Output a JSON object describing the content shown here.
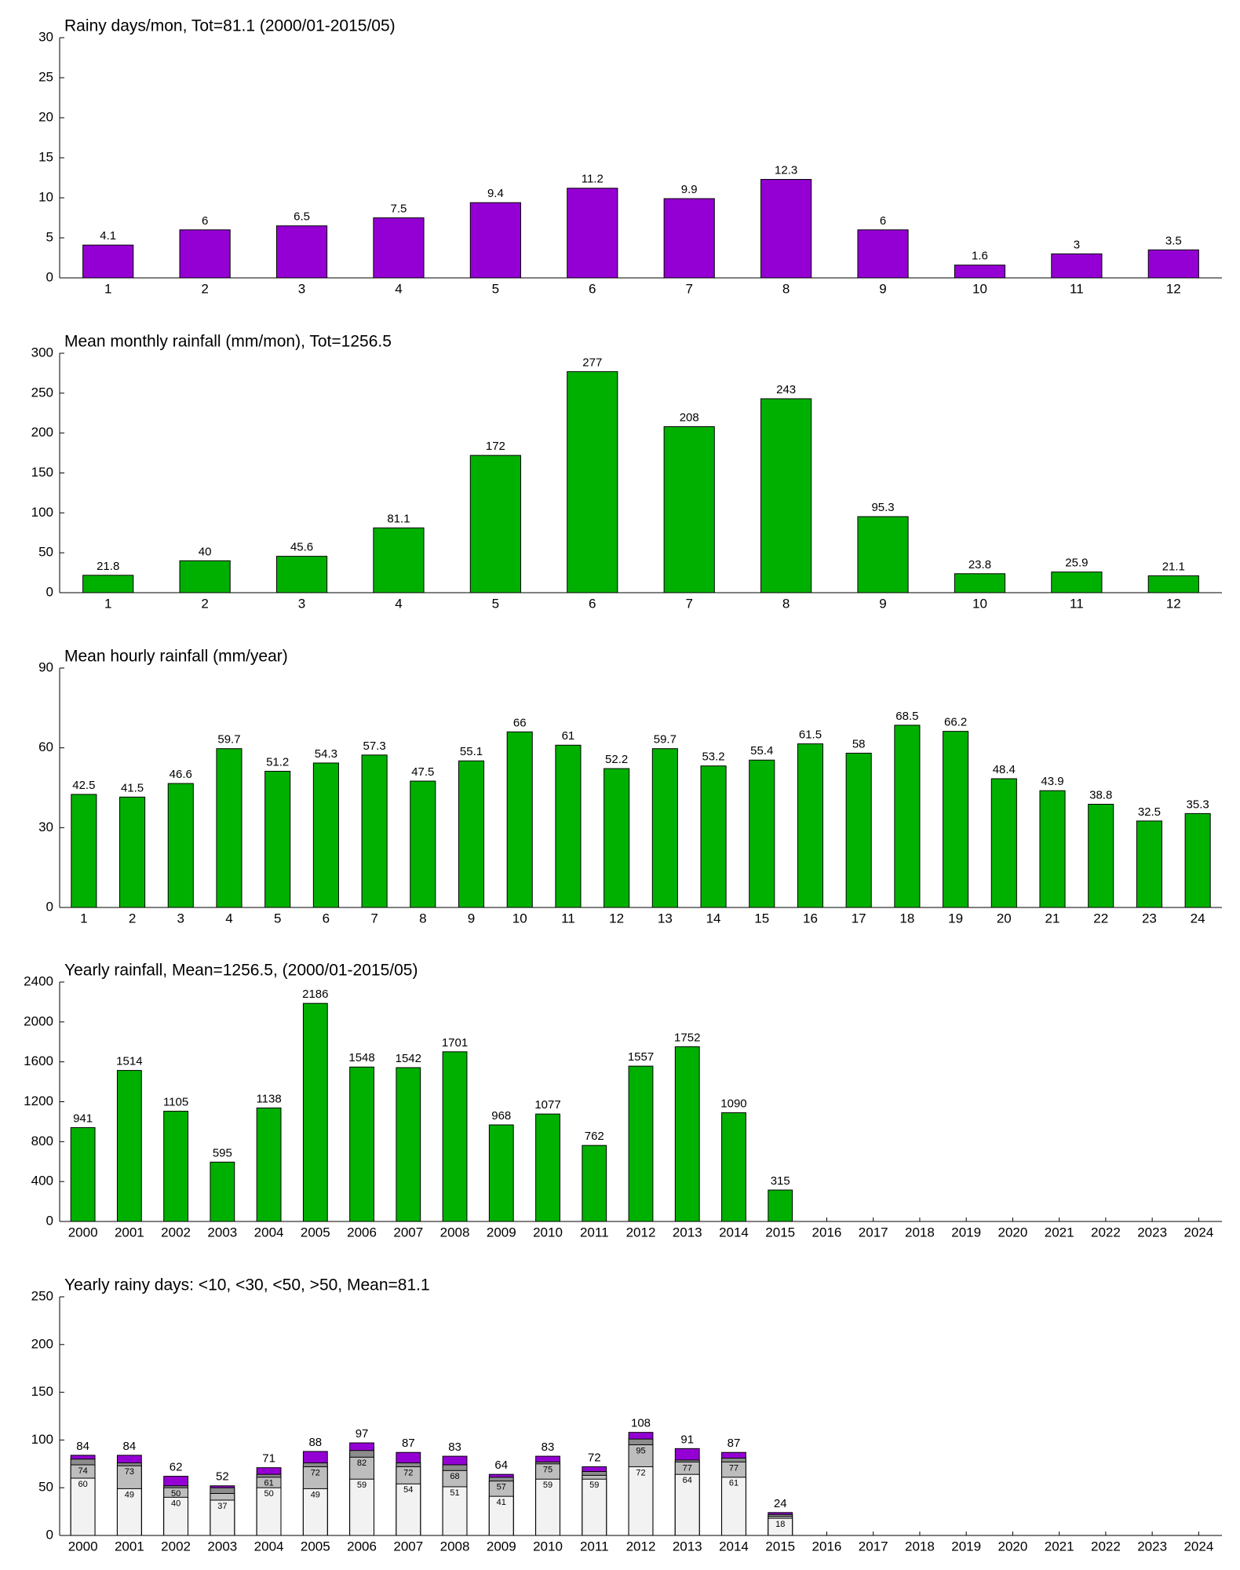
{
  "chart_data": [
    {
      "type": "bar",
      "title": "Rainy days/mon, Tot=81.1 (2000/01-2015/05)",
      "categories": [
        "1",
        "2",
        "3",
        "4",
        "5",
        "6",
        "7",
        "8",
        "9",
        "10",
        "11",
        "12"
      ],
      "values": [
        4.1,
        6,
        6.5,
        7.5,
        9.4,
        11.2,
        9.9,
        12.3,
        6,
        1.6,
        3,
        3.5
      ],
      "color": "#9400d3",
      "ylim": [
        0,
        30
      ],
      "yticks": [
        0,
        5,
        10,
        15,
        20,
        25,
        30
      ]
    },
    {
      "type": "bar",
      "title": "Mean monthly rainfall (mm/mon), Tot=1256.5",
      "categories": [
        "1",
        "2",
        "3",
        "4",
        "5",
        "6",
        "7",
        "8",
        "9",
        "10",
        "11",
        "12"
      ],
      "values": [
        21.8,
        40,
        45.6,
        81.1,
        172,
        277,
        208,
        243,
        95.3,
        23.8,
        25.9,
        21.1
      ],
      "color": "#00b000",
      "ylim": [
        0,
        300
      ],
      "yticks": [
        0,
        50,
        100,
        150,
        200,
        250,
        300
      ]
    },
    {
      "type": "bar",
      "title": "Mean hourly rainfall (mm/year)",
      "categories": [
        "1",
        "2",
        "3",
        "4",
        "5",
        "6",
        "7",
        "8",
        "9",
        "10",
        "11",
        "12",
        "13",
        "14",
        "15",
        "16",
        "17",
        "18",
        "19",
        "20",
        "21",
        "22",
        "23",
        "24"
      ],
      "values": [
        42.5,
        41.5,
        46.6,
        59.7,
        51.2,
        54.3,
        57.3,
        47.5,
        55.1,
        66,
        61,
        52.2,
        59.7,
        53.2,
        55.4,
        61.5,
        58,
        68.5,
        66.2,
        48.4,
        43.9,
        38.8,
        32.5,
        35.3
      ],
      "color": "#00b000",
      "ylim": [
        0,
        90
      ],
      "yticks": [
        0,
        30,
        60,
        90
      ]
    },
    {
      "type": "bar",
      "title": "Yearly rainfall, Mean=1256.5, (2000/01-2015/05)",
      "categories": [
        "2000",
        "2001",
        "2002",
        "2003",
        "2004",
        "2005",
        "2006",
        "2007",
        "2008",
        "2009",
        "2010",
        "2011",
        "2012",
        "2013",
        "2014",
        "2015",
        "2016",
        "2017",
        "2018",
        "2019",
        "2020",
        "2021",
        "2022",
        "2023",
        "2024"
      ],
      "values": [
        941,
        1514,
        1105,
        595,
        1138,
        2186,
        1548,
        1542,
        1701,
        968,
        1077,
        762,
        1557,
        1752,
        1090,
        315,
        null,
        null,
        null,
        null,
        null,
        null,
        null,
        null,
        null
      ],
      "color": "#00b000",
      "ylim": [
        0,
        2400
      ],
      "yticks": [
        0,
        400,
        800,
        1200,
        1600,
        2000,
        2400
      ]
    },
    {
      "type": "bar",
      "title": "Yearly rainy days: <10, <30, <50, >50, Mean=81.1",
      "categories": [
        "2000",
        "2001",
        "2002",
        "2003",
        "2004",
        "2005",
        "2006",
        "2007",
        "2008",
        "2009",
        "2010",
        "2011",
        "2012",
        "2013",
        "2014",
        "2015",
        "2016",
        "2017",
        "2018",
        "2019",
        "2020",
        "2021",
        "2022",
        "2023",
        "2024"
      ],
      "series": [
        {
          "color": "#9400d3",
          "values": [
            84,
            84,
            62,
            52,
            71,
            88,
            97,
            87,
            83,
            64,
            83,
            72,
            108,
            91,
            87,
            24,
            null,
            null,
            null,
            null,
            null,
            null,
            null,
            null,
            null
          ]
        },
        {
          "color": "#8c8c8c",
          "values": [
            80,
            76,
            52,
            50,
            64,
            76,
            89,
            76,
            74,
            61,
            77,
            67,
            101,
            79,
            81,
            22,
            null,
            null,
            null,
            null,
            null,
            null,
            null,
            null,
            null
          ]
        },
        {
          "color": "#bdbdbd",
          "values": [
            74,
            73,
            50,
            44,
            61,
            72,
            82,
            72,
            68,
            57,
            75,
            63,
            95,
            77,
            77,
            20,
            null,
            null,
            null,
            null,
            null,
            null,
            null,
            null,
            null
          ]
        },
        {
          "color": "#f2f2f2",
          "values": [
            60,
            49,
            40,
            37,
            50,
            49,
            59,
            54,
            51,
            41,
            59,
            59,
            72,
            64,
            61,
            18,
            null,
            null,
            null,
            null,
            null,
            null,
            null,
            null,
            null
          ]
        }
      ],
      "ylim": [
        0,
        250
      ],
      "yticks": [
        0,
        50,
        100,
        150,
        200,
        250
      ]
    }
  ]
}
